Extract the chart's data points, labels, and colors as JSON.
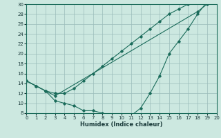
{
  "xlabel": "Humidex (Indice chaleur)",
  "xlim": [
    0,
    20
  ],
  "ylim": [
    8,
    30
  ],
  "xticks": [
    0,
    1,
    2,
    3,
    4,
    5,
    6,
    7,
    8,
    9,
    10,
    11,
    12,
    13,
    14,
    15,
    16,
    17,
    18,
    19,
    20
  ],
  "yticks": [
    8,
    10,
    12,
    14,
    16,
    18,
    20,
    22,
    24,
    26,
    28,
    30
  ],
  "line_color": "#1a6b5a",
  "bg_color": "#cce8e0",
  "grid_color": "#9bbcba",
  "line1_x": [
    0,
    1,
    2,
    3,
    4,
    5,
    6,
    7,
    8,
    9,
    10,
    11,
    12,
    13,
    14,
    15,
    16,
    17,
    18,
    19,
    20
  ],
  "line1_y": [
    14.5,
    13.5,
    12.5,
    10.5,
    10.0,
    9.5,
    8.5,
    8.5,
    8.0,
    7.5,
    7.5,
    7.5,
    9.0,
    12.0,
    15.5,
    20.0,
    22.5,
    25.0,
    28.0,
    30.5,
    30.5
  ],
  "line2_x": [
    0,
    1,
    2,
    3,
    4,
    5,
    6,
    7,
    8,
    9,
    10,
    11,
    12,
    13,
    14,
    15,
    16,
    17,
    18,
    19,
    20
  ],
  "line2_y": [
    14.5,
    13.5,
    12.5,
    12.0,
    12.0,
    13.0,
    14.5,
    16.0,
    17.5,
    19.0,
    20.5,
    22.0,
    23.5,
    25.0,
    26.5,
    28.0,
    29.0,
    30.0,
    30.5,
    30.5,
    30.5
  ],
  "line3_x": [
    0,
    1,
    2,
    3,
    18,
    19,
    20
  ],
  "line3_y": [
    14.5,
    13.5,
    12.5,
    11.5,
    28.5,
    30.0,
    30.5
  ]
}
